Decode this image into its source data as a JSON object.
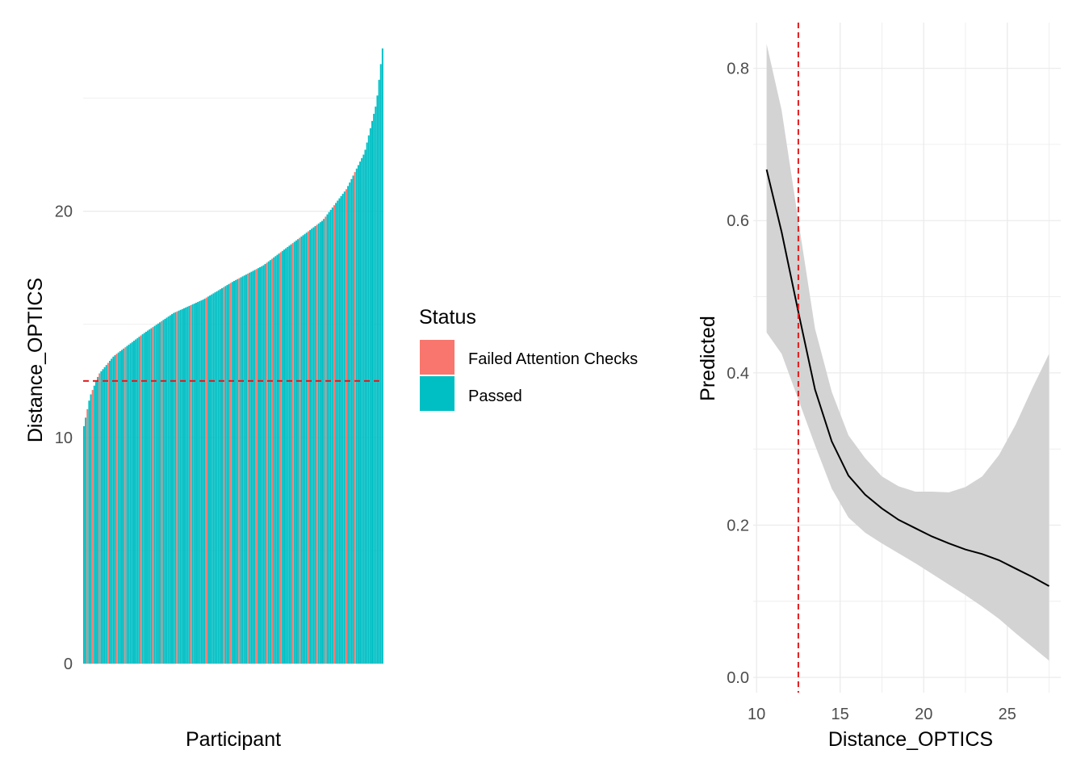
{
  "chart_data": [
    {
      "type": "bar",
      "xlabel": "Participant",
      "ylabel": "Distance_OPTICS",
      "ylim": [
        0,
        27.2
      ],
      "yticks": [
        0,
        10,
        20
      ],
      "grid": true,
      "threshold": 12.5,
      "threshold_color": "#e41a1c",
      "n_bars": 174,
      "sorted": "ascending",
      "legend": {
        "title": "Status",
        "placement": "right",
        "items": [
          {
            "label": "Failed Attention Checks",
            "color": "#F8766D"
          },
          {
            "label": "Passed",
            "color": "#00BFC4"
          }
        ]
      },
      "value_profile": [
        {
          "rank_fraction": 0.0,
          "value": 10.5
        },
        {
          "rank_fraction": 0.02,
          "value": 11.8
        },
        {
          "rank_fraction": 0.05,
          "value": 12.8
        },
        {
          "rank_fraction": 0.1,
          "value": 13.6
        },
        {
          "rank_fraction": 0.2,
          "value": 14.6
        },
        {
          "rank_fraction": 0.3,
          "value": 15.5
        },
        {
          "rank_fraction": 0.4,
          "value": 16.1
        },
        {
          "rank_fraction": 0.5,
          "value": 16.9
        },
        {
          "rank_fraction": 0.6,
          "value": 17.6
        },
        {
          "rank_fraction": 0.7,
          "value": 18.6
        },
        {
          "rank_fraction": 0.8,
          "value": 19.6
        },
        {
          "rank_fraction": 0.88,
          "value": 21.0
        },
        {
          "rank_fraction": 0.94,
          "value": 22.6
        },
        {
          "rank_fraction": 0.98,
          "value": 24.8
        },
        {
          "rank_fraction": 1.0,
          "value": 27.2
        }
      ],
      "failed_rank_fractions": [
        0.01,
        0.03,
        0.05,
        0.08,
        0.11,
        0.14,
        0.19,
        0.23,
        0.26,
        0.31,
        0.36,
        0.41,
        0.47,
        0.49,
        0.52,
        0.55,
        0.58,
        0.61,
        0.63,
        0.66,
        0.7,
        0.72,
        0.75,
        0.78,
        0.81,
        0.84,
        0.88,
        0.91
      ]
    },
    {
      "type": "line",
      "xlabel": "Distance_OPTICS",
      "ylabel": "Predicted",
      "xlim": [
        9.8,
        28.2
      ],
      "ylim": [
        -0.02,
        0.86
      ],
      "xticks": [
        10,
        15,
        20,
        25
      ],
      "yticks": [
        0.0,
        0.2,
        0.4,
        0.6,
        0.8
      ],
      "ytick_labels": [
        "0.0",
        "0.2",
        "0.4",
        "0.6",
        "0.8"
      ],
      "grid": true,
      "threshold": 12.5,
      "threshold_color": "#e41a1c",
      "series": [
        {
          "x": [
            10.6,
            11.5,
            12.5,
            13.5,
            14.5,
            15.5,
            16.5,
            17.5,
            18.5,
            19.5,
            20.5,
            21.5,
            22.5,
            23.5,
            24.5,
            25.5,
            26.5,
            27.5
          ],
          "y": [
            0.667,
            0.585,
            0.48,
            0.378,
            0.31,
            0.265,
            0.24,
            0.222,
            0.207,
            0.196,
            0.185,
            0.176,
            0.168,
            0.162,
            0.154,
            0.143,
            0.132,
            0.12
          ],
          "ci_low": [
            0.453,
            0.425,
            0.365,
            0.305,
            0.248,
            0.21,
            0.19,
            0.176,
            0.163,
            0.15,
            0.136,
            0.122,
            0.108,
            0.093,
            0.077,
            0.058,
            0.04,
            0.022
          ],
          "ci_high": [
            0.832,
            0.745,
            0.6,
            0.458,
            0.375,
            0.318,
            0.288,
            0.264,
            0.251,
            0.244,
            0.244,
            0.243,
            0.25,
            0.264,
            0.292,
            0.332,
            0.38,
            0.425
          ],
          "line_color": "#000000",
          "ribbon_color": "#d3d3d3"
        }
      ]
    }
  ]
}
